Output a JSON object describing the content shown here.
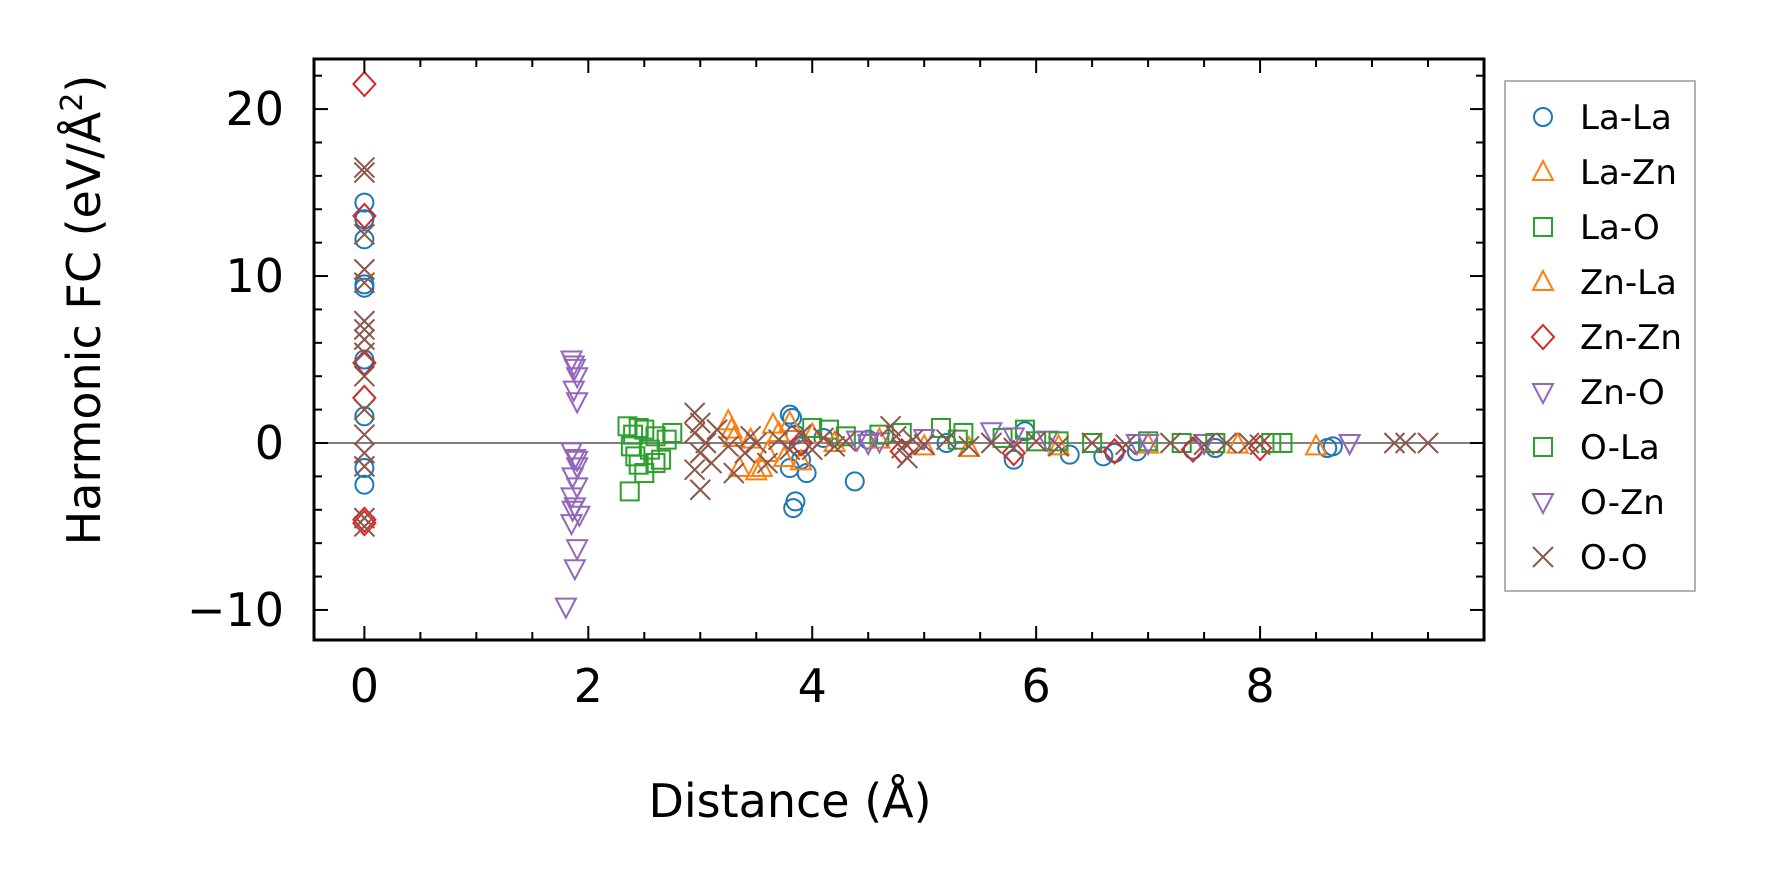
{
  "chart_data": {
    "type": "scatter",
    "xlabel": "Distance (Å)",
    "ylabel_main": "Harmonic FC (eV/Å",
    "ylabel_sup": "2",
    "ylabel_close": ")",
    "xlim": [
      -0.45,
      10.0
    ],
    "ylim": [
      -11.8,
      23.0
    ],
    "x_ticks": [
      {
        "value": 0,
        "label": "0"
      },
      {
        "value": 2,
        "label": "2"
      },
      {
        "value": 4,
        "label": "4"
      },
      {
        "value": 6,
        "label": "6"
      },
      {
        "value": 8,
        "label": "8"
      }
    ],
    "y_ticks": [
      {
        "value": -10,
        "label": "−10"
      },
      {
        "value": 0,
        "label": "0"
      },
      {
        "value": 10,
        "label": "10"
      },
      {
        "value": 20,
        "label": "20"
      }
    ],
    "x_minor_step": 0.5,
    "y_minor_step": 2,
    "zero_line": true,
    "legend_position": "outside right",
    "series": [
      {
        "name": "La-La",
        "color": "#1f77b4",
        "marker": "circle",
        "points": [
          [
            0,
            14.4
          ],
          [
            0,
            13.4
          ],
          [
            0,
            12.2
          ],
          [
            0,
            9.5
          ],
          [
            0,
            9.3
          ],
          [
            0,
            5.0
          ],
          [
            0,
            1.6
          ],
          [
            0,
            -1.5
          ],
          [
            0,
            -2.5
          ],
          [
            3.8,
            1.7
          ],
          [
            3.82,
            1.5
          ],
          [
            3.85,
            0.5
          ],
          [
            3.88,
            -0.2
          ],
          [
            3.9,
            -1.0
          ],
          [
            3.8,
            -1.5
          ],
          [
            3.85,
            -3.5
          ],
          [
            3.83,
            -3.9
          ],
          [
            3.95,
            -1.8
          ],
          [
            4.38,
            -2.3
          ],
          [
            4.1,
            0.3
          ],
          [
            4.5,
            0.2
          ],
          [
            5.2,
            0.0
          ],
          [
            5.9,
            0.7
          ],
          [
            5.8,
            -1.0
          ],
          [
            6.3,
            -0.7
          ],
          [
            6.6,
            -0.8
          ],
          [
            6.7,
            -0.6
          ],
          [
            6.9,
            -0.5
          ],
          [
            7.4,
            -0.4
          ],
          [
            7.6,
            -0.3
          ],
          [
            8.6,
            -0.3
          ],
          [
            8.65,
            -0.2
          ]
        ]
      },
      {
        "name": "La-Zn",
        "color": "#ff7f0e",
        "marker": "triangle-up",
        "points": [
          [
            3.25,
            1.3
          ],
          [
            3.3,
            0.3
          ],
          [
            3.35,
            -1.5
          ],
          [
            3.5,
            -1.7
          ],
          [
            3.55,
            -1.5
          ],
          [
            3.6,
            -0.6
          ],
          [
            3.65,
            1.1
          ],
          [
            3.7,
            0.6
          ],
          [
            3.8,
            1.2
          ],
          [
            3.9,
            -1.1
          ],
          [
            4.0,
            0.5
          ],
          [
            4.6,
            0.2
          ],
          [
            5.4,
            -0.3
          ],
          [
            6.2,
            -0.2
          ],
          [
            7.0,
            -0.1
          ],
          [
            7.8,
            -0.1
          ],
          [
            8.5,
            -0.2
          ]
        ]
      },
      {
        "name": "La-O",
        "color": "#2ca02c",
        "marker": "square",
        "points": [
          [
            2.35,
            1.0
          ],
          [
            2.4,
            0.5
          ],
          [
            2.38,
            -0.2
          ],
          [
            2.42,
            -0.8
          ],
          [
            2.45,
            -1.3
          ],
          [
            2.37,
            -2.9
          ],
          [
            2.5,
            0.8
          ],
          [
            2.55,
            -0.4
          ],
          [
            2.6,
            0.4
          ],
          [
            2.65,
            -1.0
          ],
          [
            2.7,
            0.2
          ],
          [
            2.75,
            0.6
          ],
          [
            4.15,
            0.8
          ],
          [
            4.3,
            0.4
          ],
          [
            4.8,
            0.6
          ],
          [
            5.15,
            0.9
          ],
          [
            5.35,
            0.6
          ],
          [
            5.9,
            0.8
          ],
          [
            6.0,
            0.1
          ],
          [
            6.5,
            0.0
          ],
          [
            7.3,
            0.0
          ],
          [
            8.2,
            0.0
          ]
        ]
      },
      {
        "name": "Zn-La",
        "color": "#ff7f0e",
        "marker": "triangle-up",
        "points": [
          [
            3.28,
            0.8
          ],
          [
            3.45,
            0.2
          ],
          [
            3.75,
            -0.9
          ],
          [
            4.2,
            0.0
          ],
          [
            5.0,
            -0.2
          ]
        ]
      },
      {
        "name": "Zn-Zn",
        "color": "#d62728",
        "marker": "diamond",
        "points": [
          [
            0,
            21.5
          ],
          [
            0,
            13.6
          ],
          [
            0,
            4.8
          ],
          [
            0,
            2.7
          ],
          [
            0,
            -4.6
          ],
          [
            0,
            -4.8
          ],
          [
            3.9,
            0.0
          ],
          [
            4.8,
            -0.5
          ],
          [
            5.8,
            -0.6
          ],
          [
            6.7,
            -0.5
          ],
          [
            7.4,
            -0.4
          ],
          [
            8.0,
            -0.3
          ]
        ]
      },
      {
        "name": "Zn-O",
        "color": "#9467bd",
        "marker": "triangle-down",
        "points": [
          [
            1.85,
            5.0
          ],
          [
            1.88,
            4.5
          ],
          [
            1.9,
            4.0
          ],
          [
            1.87,
            3.2
          ],
          [
            1.9,
            2.5
          ],
          [
            1.85,
            -0.5
          ],
          [
            1.88,
            -0.9
          ],
          [
            1.9,
            -1.4
          ],
          [
            1.86,
            -2.0
          ],
          [
            1.9,
            -2.6
          ],
          [
            1.85,
            -3.2
          ],
          [
            1.88,
            -3.8
          ],
          [
            1.92,
            -4.3
          ],
          [
            1.85,
            -4.8
          ],
          [
            1.9,
            -6.3
          ],
          [
            1.88,
            -7.5
          ],
          [
            1.8,
            -9.8
          ],
          [
            4.4,
            0.2
          ],
          [
            4.6,
            0.1
          ],
          [
            5.0,
            0.3
          ],
          [
            5.6,
            0.7
          ],
          [
            6.1,
            0.2
          ],
          [
            6.9,
            0.0
          ],
          [
            7.5,
            0.0
          ],
          [
            8.8,
            0.0
          ]
        ]
      },
      {
        "name": "O-La",
        "color": "#2ca02c",
        "marker": "square",
        "points": [
          [
            2.45,
            0.9
          ],
          [
            2.5,
            -1.8
          ],
          [
            2.6,
            -1.2
          ],
          [
            4.0,
            0.9
          ],
          [
            4.6,
            0.5
          ],
          [
            5.3,
            0.2
          ],
          [
            5.7,
            0.3
          ],
          [
            6.2,
            0.1
          ],
          [
            7.0,
            0.1
          ],
          [
            7.6,
            0.0
          ],
          [
            8.1,
            0.0
          ]
        ]
      },
      {
        "name": "O-Zn",
        "color": "#9467bd",
        "marker": "triangle-down",
        "points": [
          [
            1.87,
            4.7
          ],
          [
            1.9,
            -1.0
          ],
          [
            1.86,
            -4.0
          ],
          [
            4.5,
            0.0
          ],
          [
            5.8,
            0.4
          ],
          [
            7.0,
            0.0
          ],
          [
            8.8,
            0.0
          ]
        ]
      },
      {
        "name": "O-O",
        "color": "#8c564b",
        "marker": "cross",
        "points": [
          [
            0,
            16.5
          ],
          [
            0,
            16.2
          ],
          [
            0,
            12.5
          ],
          [
            0,
            10.4
          ],
          [
            0,
            9.6
          ],
          [
            0,
            7.3
          ],
          [
            0,
            6.8
          ],
          [
            0,
            6.2
          ],
          [
            0,
            5.4
          ],
          [
            0,
            4.0
          ],
          [
            0,
            2.0
          ],
          [
            0,
            0.5
          ],
          [
            0,
            -0.6
          ],
          [
            0,
            -1.4
          ],
          [
            0,
            -4.5
          ],
          [
            0,
            -5.0
          ],
          [
            2.95,
            1.8
          ],
          [
            3.0,
            1.2
          ],
          [
            2.95,
            0.6
          ],
          [
            3.05,
            0.0
          ],
          [
            3.0,
            -0.6
          ],
          [
            3.1,
            -1.2
          ],
          [
            2.95,
            -1.6
          ],
          [
            3.0,
            -2.8
          ],
          [
            3.15,
            0.8
          ],
          [
            3.25,
            -0.2
          ],
          [
            3.3,
            -1.8
          ],
          [
            3.4,
            -0.6
          ],
          [
            3.45,
            0.4
          ],
          [
            3.5,
            0.0
          ],
          [
            3.6,
            -1.2
          ],
          [
            3.7,
            0.2
          ],
          [
            3.8,
            -0.4
          ],
          [
            3.9,
            0.5
          ],
          [
            4.0,
            -0.4
          ],
          [
            4.1,
            0.3
          ],
          [
            4.2,
            -0.2
          ],
          [
            4.3,
            0.1
          ],
          [
            4.7,
            1.0
          ],
          [
            4.75,
            0.4
          ],
          [
            4.8,
            -0.3
          ],
          [
            4.85,
            -0.9
          ],
          [
            4.9,
            0.2
          ],
          [
            5.0,
            -0.1
          ],
          [
            5.2,
            0.2
          ],
          [
            5.4,
            -0.2
          ],
          [
            5.6,
            0.0
          ],
          [
            5.8,
            -0.3
          ],
          [
            6.0,
            0.1
          ],
          [
            6.2,
            -0.2
          ],
          [
            6.5,
            0.0
          ],
          [
            6.8,
            -0.1
          ],
          [
            7.2,
            0.0
          ],
          [
            7.5,
            -0.1
          ],
          [
            7.7,
            0.0
          ],
          [
            7.9,
            0.0
          ],
          [
            8.0,
            -0.1
          ],
          [
            9.2,
            0.0
          ],
          [
            9.3,
            0.0
          ],
          [
            9.5,
            0.0
          ]
        ]
      }
    ]
  }
}
